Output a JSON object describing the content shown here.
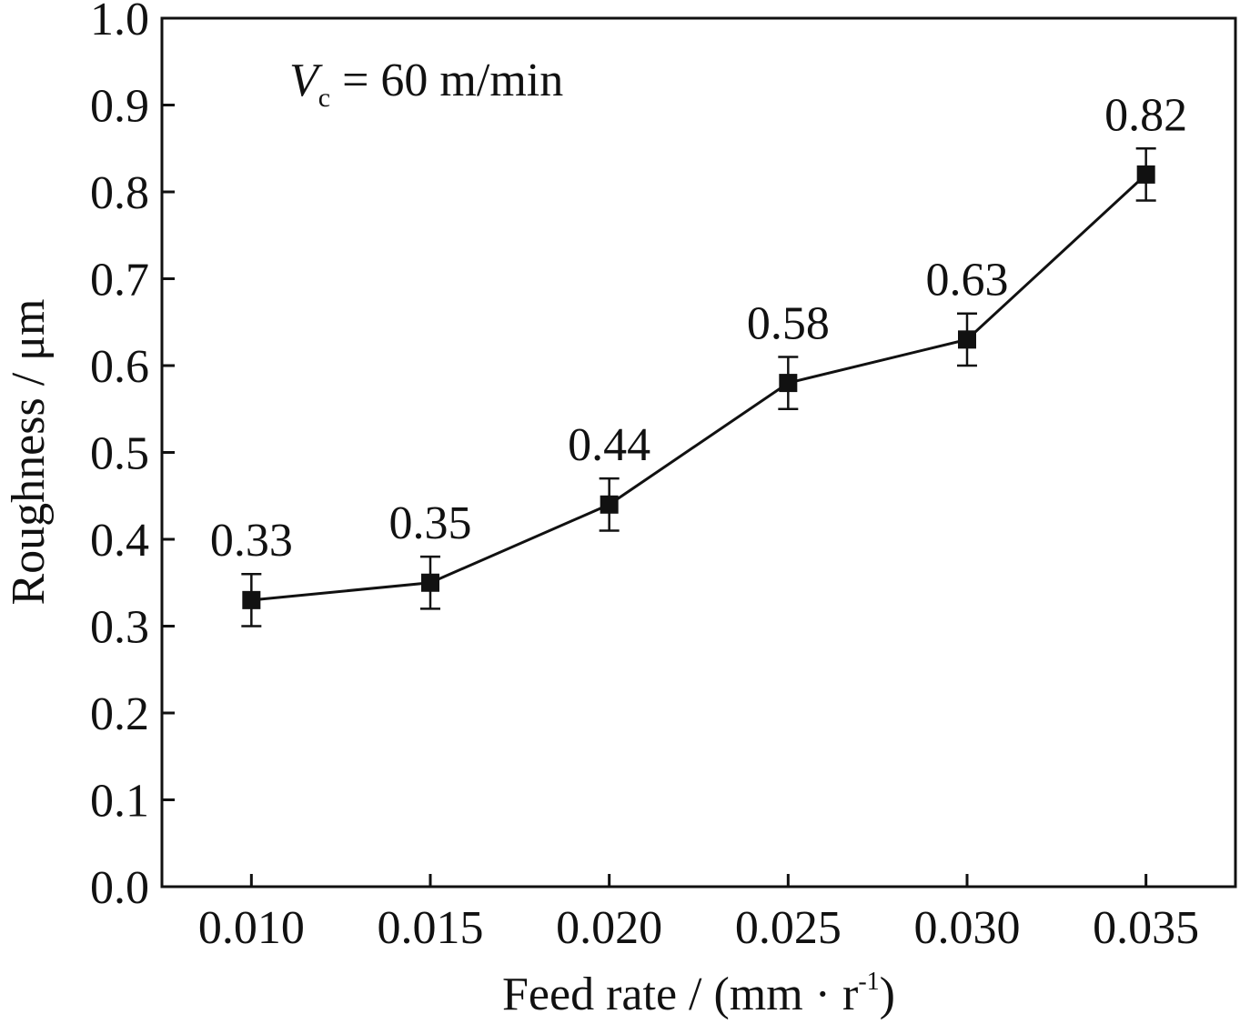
{
  "chart_data": {
    "type": "line",
    "annotation": {
      "symbol": "V",
      "subscript": "c",
      "rest": " = 60 m/min"
    },
    "xlabel": {
      "main": "Feed rate / (mm · r",
      "sup": "-1",
      "close": ")"
    },
    "ylabel": "Roughness / μm",
    "x": [
      0.01,
      0.015,
      0.02,
      0.025,
      0.03,
      0.035
    ],
    "x_tick_labels": [
      "0.010",
      "0.015",
      "0.020",
      "0.025",
      "0.030",
      "0.035"
    ],
    "y_ticks": [
      0.0,
      0.1,
      0.2,
      0.3,
      0.4,
      0.5,
      0.6,
      0.7,
      0.8,
      0.9,
      1.0
    ],
    "y_tick_labels": [
      "0.0",
      "0.1",
      "0.2",
      "0.3",
      "0.4",
      "0.5",
      "0.6",
      "0.7",
      "0.8",
      "0.9",
      "1.0"
    ],
    "ylim": [
      0.0,
      1.0
    ],
    "xlim": [
      0.0075,
      0.0375
    ],
    "series": [
      {
        "values": [
          0.33,
          0.35,
          0.44,
          0.58,
          0.63,
          0.82
        ],
        "error": [
          0.03,
          0.03,
          0.03,
          0.03,
          0.03,
          0.03
        ],
        "data_labels": [
          "0.33",
          "0.35",
          "0.44",
          "0.58",
          "0.63",
          "0.82"
        ],
        "marker": "square",
        "color": "#111111"
      }
    ],
    "grid": false,
    "legend": "none"
  }
}
